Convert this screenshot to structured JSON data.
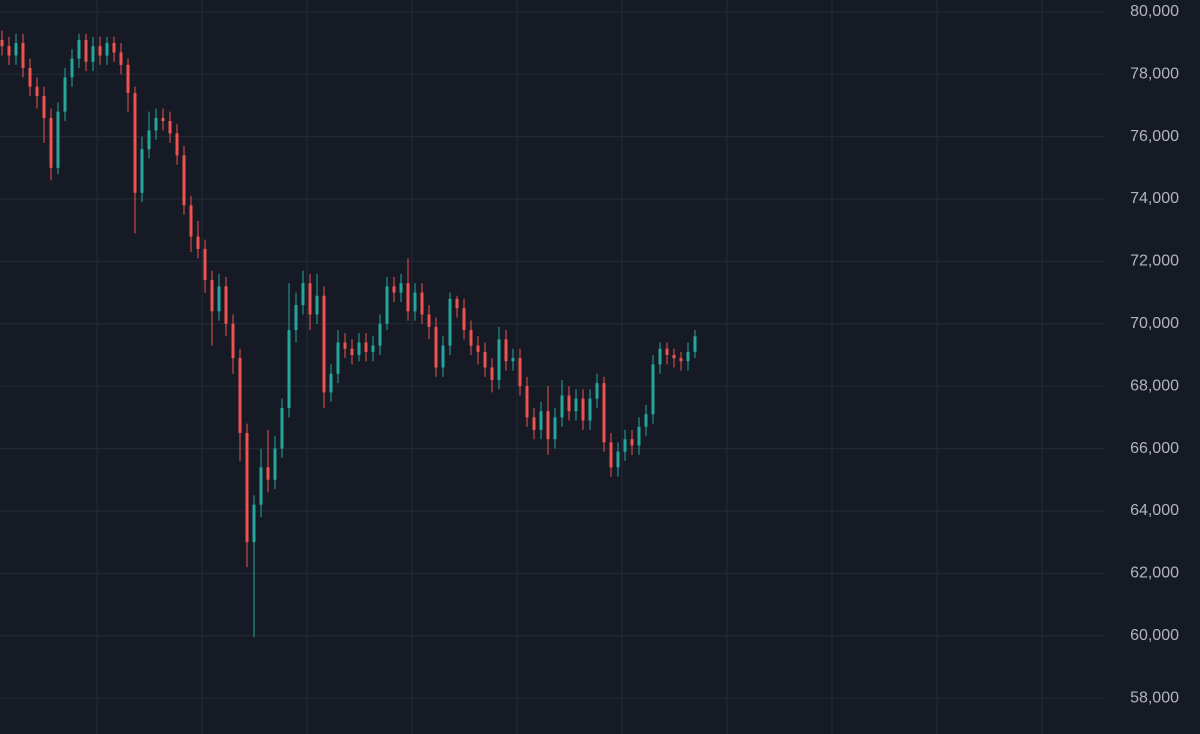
{
  "chart_data": {
    "type": "candlestick",
    "categories": [
      null,
      null,
      null,
      null,
      null,
      null,
      null,
      null,
      null,
      null,
      null,
      null,
      null,
      null,
      null,
      null,
      null,
      null,
      null,
      null,
      null,
      null,
      null,
      null,
      null,
      null,
      null,
      null,
      null,
      null,
      null,
      null,
      null,
      null,
      null,
      null,
      null,
      null,
      null,
      null,
      null,
      null,
      null,
      null,
      null,
      null,
      null,
      null,
      null,
      null,
      null,
      null,
      null,
      null,
      null,
      null,
      null,
      null,
      null,
      null,
      null,
      null,
      null,
      null,
      null,
      null,
      null,
      null,
      null,
      null,
      null,
      null,
      null,
      null,
      null,
      null,
      null,
      null,
      null,
      null,
      null,
      null,
      null,
      null,
      null,
      null,
      null,
      null,
      null,
      null,
      null,
      null,
      null,
      null,
      null,
      null,
      null,
      null,
      null,
      null
    ],
    "open": [
      79100,
      78900,
      78600,
      79000,
      78200,
      77600,
      77300,
      76600,
      75000,
      76800,
      77900,
      78500,
      79100,
      78400,
      78900,
      78600,
      79000,
      78700,
      78300,
      77400,
      74200,
      75600,
      76200,
      76600,
      76500,
      76100,
      75400,
      73800,
      72800,
      72400,
      71400,
      70400,
      71200,
      70000,
      68900,
      66500,
      63000,
      64200,
      65400,
      65000,
      66000,
      67300,
      69800,
      70600,
      71300,
      70300,
      70900,
      67800,
      68400,
      69400,
      69200,
      69000,
      69400,
      69100,
      69300,
      70000,
      71200,
      71000,
      71300,
      70400,
      71000,
      70300,
      69900,
      68600,
      69300,
      70800,
      70500,
      69800,
      69300,
      69100,
      68600,
      68200,
      69500,
      68800,
      68900,
      68000,
      67000,
      66600,
      67200,
      66300,
      67000,
      67700,
      67200,
      67600,
      66900,
      67600,
      68100,
      66200,
      65400,
      65900,
      66300,
      66100,
      66700,
      67100,
      68700,
      69200,
      69000,
      68900,
      68800,
      69100
    ],
    "high": [
      79400,
      79200,
      79300,
      79300,
      78500,
      77900,
      77600,
      76900,
      77100,
      78200,
      78800,
      79300,
      79300,
      79200,
      79200,
      79200,
      79200,
      79000,
      78500,
      77600,
      76000,
      76800,
      76900,
      76900,
      76800,
      76400,
      75700,
      74100,
      73300,
      72700,
      71700,
      71600,
      71500,
      70300,
      69200,
      66800,
      64500,
      66000,
      66600,
      66400,
      67600,
      71300,
      71000,
      71700,
      71600,
      71600,
      71200,
      68700,
      69800,
      69700,
      69500,
      69700,
      69700,
      69600,
      70300,
      71500,
      71500,
      71600,
      72100,
      71300,
      71300,
      70600,
      70200,
      69600,
      71000,
      70900,
      70800,
      70100,
      69600,
      69400,
      68900,
      69900,
      69800,
      69200,
      69200,
      68300,
      67300,
      67500,
      68000,
      67300,
      68200,
      68000,
      67900,
      67900,
      67900,
      68400,
      68300,
      66500,
      66200,
      66600,
      66600,
      67000,
      67400,
      69000,
      69400,
      69400,
      69200,
      69100,
      69400,
      69800
    ],
    "low": [
      78600,
      78300,
      78300,
      77900,
      77300,
      76900,
      75800,
      74600,
      74800,
      76500,
      77600,
      78200,
      78100,
      78100,
      78300,
      78300,
      78400,
      78000,
      76800,
      72900,
      73900,
      75300,
      75900,
      76200,
      75800,
      75100,
      73500,
      72300,
      72100,
      71000,
      69300,
      70100,
      69600,
      68400,
      65600,
      62200,
      59950,
      63800,
      64600,
      64700,
      65700,
      67000,
      69400,
      70300,
      69800,
      70000,
      67300,
      67500,
      68100,
      68900,
      68700,
      68800,
      68800,
      68800,
      69000,
      69800,
      70700,
      70700,
      70100,
      70100,
      70000,
      69500,
      68300,
      68300,
      69000,
      70200,
      69500,
      69000,
      68700,
      68300,
      67800,
      67900,
      68500,
      68500,
      67700,
      66700,
      66300,
      66300,
      65800,
      66000,
      66700,
      66900,
      66900,
      66600,
      66600,
      67300,
      65900,
      65100,
      65100,
      65600,
      65800,
      65800,
      66400,
      66800,
      68400,
      68700,
      68600,
      68500,
      68500,
      68900
    ],
    "close": [
      78900,
      78600,
      79000,
      78200,
      77600,
      77300,
      76600,
      75000,
      76800,
      77900,
      78500,
      79100,
      78400,
      78900,
      78600,
      79000,
      78700,
      78300,
      77400,
      74200,
      75600,
      76200,
      76600,
      76500,
      76100,
      75400,
      73800,
      72800,
      72400,
      71400,
      70400,
      71200,
      70000,
      68900,
      66500,
      63000,
      64200,
      65400,
      65000,
      66000,
      67300,
      69800,
      70600,
      71300,
      70300,
      70900,
      67800,
      68400,
      69400,
      69200,
      69000,
      69400,
      69100,
      69300,
      70000,
      71200,
      71000,
      71300,
      70400,
      71000,
      70300,
      69900,
      68600,
      69300,
      70800,
      70500,
      69800,
      69300,
      69100,
      68600,
      68200,
      69500,
      68800,
      68900,
      68000,
      67000,
      66600,
      67200,
      66300,
      67000,
      67700,
      67200,
      67600,
      66900,
      67600,
      68100,
      66200,
      65400,
      65900,
      66300,
      66100,
      66700,
      67100,
      68700,
      69200,
      69000,
      68900,
      68800,
      69100,
      69600
    ],
    "up_color": "#26a69a",
    "down_color": "#ef5350",
    "ylim": [
      56850,
      80380
    ],
    "yticks": [
      {
        "value": 58000,
        "label": "58,000"
      },
      {
        "value": 60000,
        "label": "60,000"
      },
      {
        "value": 62000,
        "label": "62,000"
      },
      {
        "value": 64000,
        "label": "64,000"
      },
      {
        "value": 66000,
        "label": "66,000"
      },
      {
        "value": 68000,
        "label": "68,000"
      },
      {
        "value": 70000,
        "label": "70,000"
      },
      {
        "value": 72000,
        "label": "72,000"
      },
      {
        "value": 74000,
        "label": "74,000"
      },
      {
        "value": 76000,
        "label": "76,000"
      },
      {
        "value": 78000,
        "label": "78,000"
      },
      {
        "value": 80000,
        "label": "80,000"
      }
    ],
    "grid": true
  }
}
